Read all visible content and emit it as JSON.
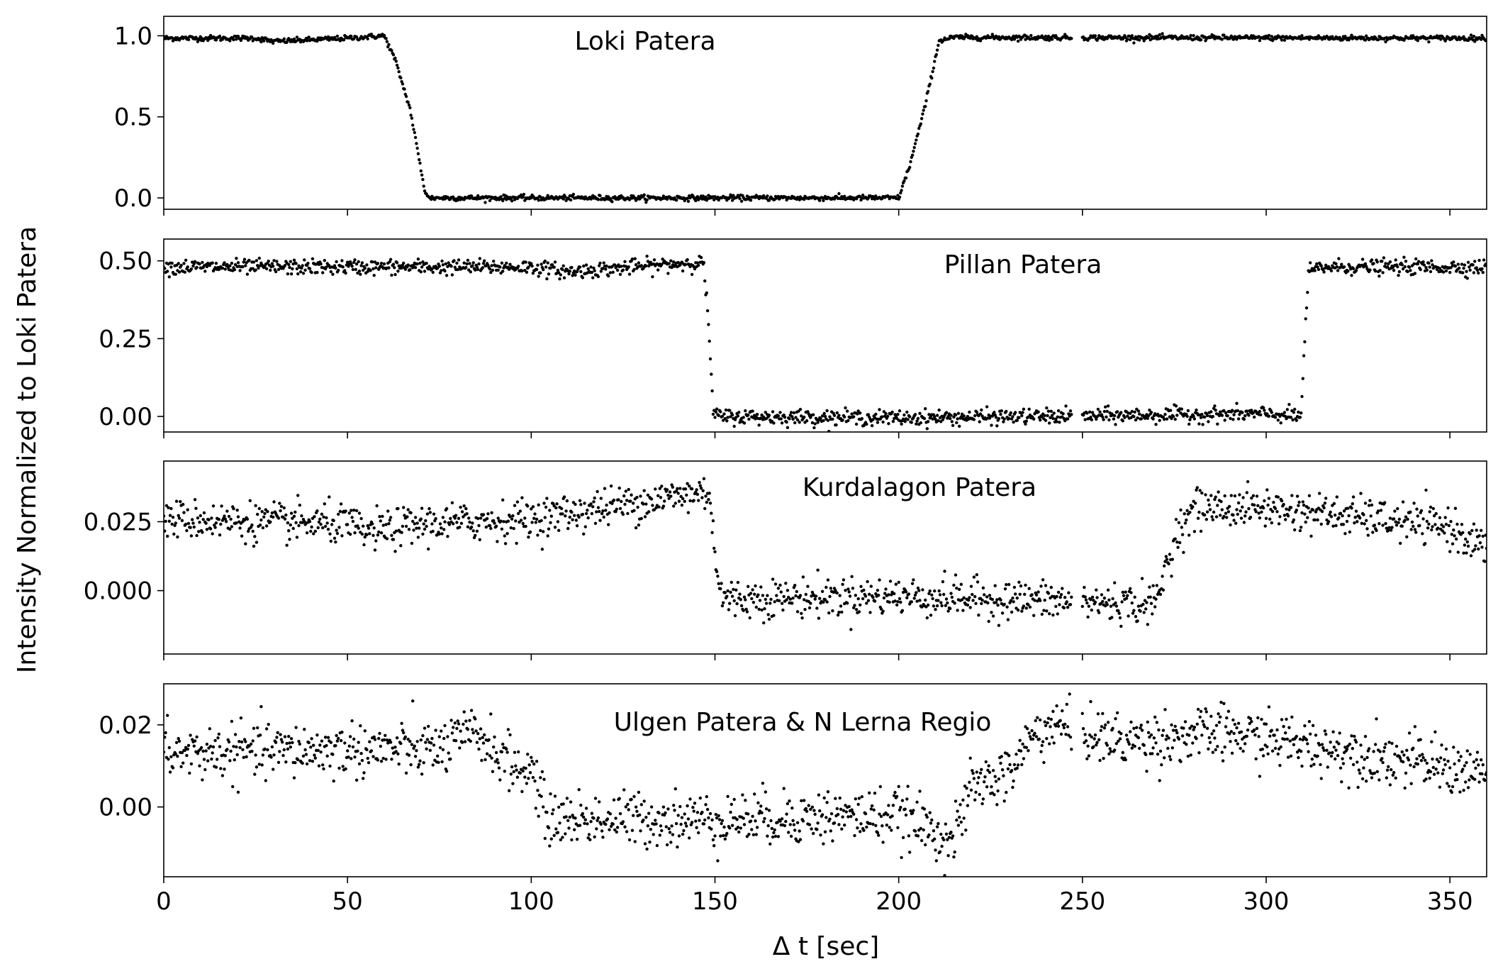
{
  "chart_data": {
    "type": "scatter",
    "shared_x": true,
    "xlabel": "Δ t [sec]",
    "ylabel": "Intensity Normalized to Loki Patera",
    "xlim": [
      0,
      360
    ],
    "xticks": [
      0,
      50,
      100,
      150,
      200,
      250,
      300,
      350
    ],
    "xtick_labels": [
      "0",
      "50",
      "100",
      "150",
      "200",
      "250",
      "300",
      "350"
    ],
    "marker_color": "#000000",
    "data_gap": [
      247,
      250
    ],
    "panels": [
      {
        "title": "Loki Patera",
        "ylim": [
          -0.07,
          1.12
        ],
        "yticks": [
          0.0,
          0.5,
          1.0
        ],
        "ytick_labels": [
          "0.0",
          "0.5",
          "1.0"
        ],
        "profile": [
          [
            0,
            0.985
          ],
          [
            25,
            0.985
          ],
          [
            30,
            0.965
          ],
          [
            50,
            0.985
          ],
          [
            60,
            1.0
          ],
          [
            63,
            0.85
          ],
          [
            67,
            0.55
          ],
          [
            71,
            0.05
          ],
          [
            72,
            0.0
          ],
          [
            200,
            0.0
          ],
          [
            203,
            0.2
          ],
          [
            207,
            0.55
          ],
          [
            211,
            0.97
          ],
          [
            215,
            0.99
          ],
          [
            360,
            0.985
          ]
        ],
        "noise": 0.008
      },
      {
        "title": "Pillan Patera",
        "ylim": [
          -0.05,
          0.57
        ],
        "yticks": [
          0.0,
          0.25,
          0.5
        ],
        "ytick_labels": [
          "0.00",
          "0.25",
          "0.50"
        ],
        "profile": [
          [
            0,
            0.48
          ],
          [
            100,
            0.48
          ],
          [
            110,
            0.465
          ],
          [
            145,
            0.495
          ],
          [
            147,
            0.49
          ],
          [
            148.5,
            0.25
          ],
          [
            149.5,
            0.01
          ],
          [
            151,
            0.0
          ],
          [
            200,
            -0.005
          ],
          [
            300,
            0.008
          ],
          [
            309.5,
            0.0
          ],
          [
            310.5,
            0.25
          ],
          [
            311.5,
            0.46
          ],
          [
            315,
            0.48
          ],
          [
            360,
            0.48
          ]
        ],
        "noise": 0.012
      },
      {
        "title": "Kurdalagon Patera",
        "ylim": [
          -0.023,
          0.047
        ],
        "yticks": [
          0.0,
          0.025
        ],
        "ytick_labels": [
          "0.000",
          "0.025"
        ],
        "profile": [
          [
            0,
            0.026
          ],
          [
            50,
            0.024
          ],
          [
            55,
            0.021
          ],
          [
            70,
            0.024
          ],
          [
            100,
            0.026
          ],
          [
            148,
            0.036
          ],
          [
            149,
            0.032
          ],
          [
            150,
            0.012
          ],
          [
            152,
            -0.003
          ],
          [
            200,
            -0.002
          ],
          [
            270,
            -0.005
          ],
          [
            273,
            0.01
          ],
          [
            276,
            0.022
          ],
          [
            281,
            0.03
          ],
          [
            300,
            0.03
          ],
          [
            330,
            0.026
          ],
          [
            350,
            0.023
          ],
          [
            360,
            0.015
          ]
        ],
        "noise": 0.0035
      },
      {
        "title": "Ulgen Patera & N Lerna Regio",
        "ylim": [
          -0.017,
          0.03
        ],
        "yticks": [
          0.0,
          0.02
        ],
        "ytick_labels": [
          "0.00",
          "0.02"
        ],
        "profile": [
          [
            0,
            0.013
          ],
          [
            50,
            0.014
          ],
          [
            75,
            0.014
          ],
          [
            85,
            0.018
          ],
          [
            95,
            0.01
          ],
          [
            101,
            0.008
          ],
          [
            104,
            -0.003
          ],
          [
            150,
            -0.003
          ],
          [
            200,
            -0.002
          ],
          [
            215,
            -0.008
          ],
          [
            220,
            0.005
          ],
          [
            230,
            0.008
          ],
          [
            236,
            0.017
          ],
          [
            242,
            0.02
          ],
          [
            260,
            0.016
          ],
          [
            290,
            0.018
          ],
          [
            320,
            0.014
          ],
          [
            360,
            0.008
          ]
        ],
        "noise": 0.0033
      }
    ]
  }
}
